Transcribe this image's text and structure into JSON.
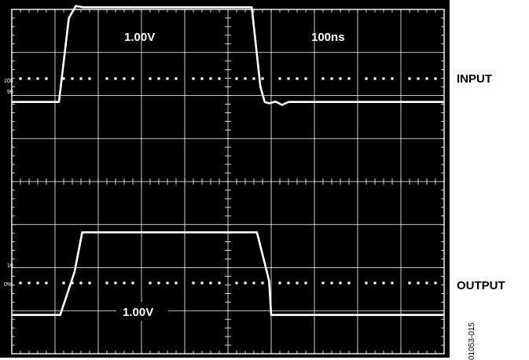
{
  "chart_data": {
    "type": "line",
    "grid": true,
    "divisions": {
      "x": 10,
      "y": 8
    },
    "settings": {
      "vertical_scale": "1.00V",
      "time_base": "100ns",
      "output_vertical_scale": "1.00V"
    },
    "reference_marks": {
      "input_upper": "100",
      "input_lower": "90",
      "output_upper": "10",
      "output_lower": "0%"
    },
    "channel_labels": [
      "INPUT",
      "OUTPUT"
    ],
    "series": [
      {
        "name": "INPUT",
        "x_div": [
          0,
          1.09,
          1.32,
          1.48,
          1.65,
          5.55,
          5.75,
          5.85,
          5.95,
          6.1,
          6.25,
          6.4,
          10
        ],
        "y_div": [
          1.85,
          1.85,
          3.8,
          4.08,
          4.05,
          4.05,
          2.2,
          1.85,
          1.82,
          1.86,
          1.78,
          1.85,
          1.85
        ]
      },
      {
        "name": "OUTPUT",
        "x_div": [
          0,
          1.12,
          1.45,
          1.63,
          5.67,
          5.95,
          6.0,
          10
        ],
        "y_div": [
          -3.1,
          -3.1,
          -2.1,
          -1.18,
          -1.18,
          -2.3,
          -3.1,
          -3.1
        ]
      }
    ]
  },
  "colors": {
    "background": "#000000",
    "grid": "#ffffff",
    "trace": "#ffffff"
  },
  "figure_id": "01053-015"
}
